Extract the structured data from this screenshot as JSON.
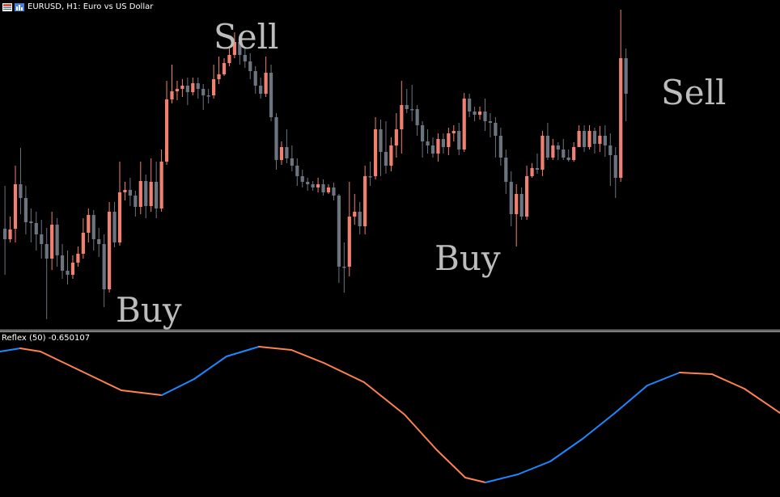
{
  "header": {
    "symbol_title": "EURUSD, H1:  Euro vs US Dollar"
  },
  "indicator": {
    "title": "Reflex (50) -0.650107",
    "rising_color": "#1e88ff",
    "falling_color": "#ff8050"
  },
  "signals": {
    "sell_1": "Sell",
    "sell_2": "Sell",
    "buy_1": "Buy",
    "buy_2": "Buy"
  },
  "colors": {
    "bull": "#f08070",
    "bear": "#6c7480",
    "background": "#000000"
  },
  "icons": [
    "bar-chart-icon",
    "window-icon"
  ],
  "chart_data": {
    "type": "candlestick",
    "candles": [
      [
        283,
        296,
        230,
        340
      ],
      [
        296,
        284,
        268,
        300
      ],
      [
        283,
        228,
        205,
        300
      ],
      [
        228,
        245,
        183,
        265
      ],
      [
        245,
        275,
        230,
        290
      ],
      [
        274,
        276,
        258,
        300
      ],
      [
        276,
        290,
        262,
        310
      ],
      [
        290,
        302,
        272,
        320
      ],
      [
        302,
        320,
        282,
        395
      ],
      [
        320,
        278,
        262,
        334
      ],
      [
        278,
        316,
        270,
        330
      ],
      [
        316,
        335,
        302,
        345
      ],
      [
        335,
        340,
        310,
        352
      ],
      [
        340,
        325,
        316,
        345
      ],
      [
        325,
        314,
        305,
        330
      ],
      [
        314,
        288,
        270,
        320
      ],
      [
        288,
        266,
        258,
        300
      ],
      [
        266,
        296,
        260,
        310
      ],
      [
        296,
        302,
        282,
        318
      ],
      [
        302,
        358,
        290,
        380
      ],
      [
        358,
        262,
        250,
        362
      ],
      [
        262,
        300,
        250,
        306
      ],
      [
        300,
        238,
        200,
        304
      ],
      [
        238,
        235,
        225,
        248
      ],
      [
        235,
        242,
        220,
        255
      ],
      [
        242,
        256,
        236,
        268
      ],
      [
        256,
        224,
        200,
        265
      ],
      [
        224,
        255,
        216,
        270
      ],
      [
        255,
        225,
        196,
        262
      ],
      [
        225,
        258,
        200,
        270
      ],
      [
        258,
        200,
        185,
        262
      ],
      [
        200,
        123,
        100,
        204
      ],
      [
        123,
        113,
        80,
        128
      ],
      [
        113,
        110,
        100,
        124
      ],
      [
        110,
        106,
        98,
        120
      ],
      [
        106,
        114,
        96,
        130
      ],
      [
        114,
        103,
        96,
        118
      ],
      [
        103,
        110,
        96,
        122
      ],
      [
        110,
        118,
        104,
        136
      ],
      [
        118,
        118,
        110,
        128
      ],
      [
        118,
        98,
        80,
        122
      ],
      [
        98,
        92,
        70,
        104
      ],
      [
        92,
        78,
        72,
        94
      ],
      [
        78,
        68,
        60,
        82
      ],
      [
        68,
        52,
        40,
        72
      ],
      [
        52,
        68,
        46,
        80
      ],
      [
        68,
        76,
        60,
        84
      ],
      [
        76,
        88,
        66,
        98
      ],
      [
        88,
        106,
        82,
        116
      ],
      [
        106,
        116,
        96,
        122
      ],
      [
        116,
        90,
        70,
        120
      ],
      [
        90,
        145,
        80,
        150
      ],
      [
        145,
        198,
        140,
        210
      ],
      [
        198,
        182,
        175,
        204
      ],
      [
        182,
        196,
        160,
        202
      ],
      [
        196,
        205,
        180,
        212
      ],
      [
        205,
        218,
        196,
        230
      ],
      [
        218,
        225,
        210,
        232
      ],
      [
        225,
        228,
        220,
        236
      ],
      [
        228,
        232,
        224,
        236
      ],
      [
        232,
        228,
        220,
        238
      ],
      [
        228,
        238,
        222,
        242
      ],
      [
        238,
        232,
        228,
        240
      ],
      [
        232,
        242,
        226,
        248
      ],
      [
        242,
        330,
        240,
        350
      ],
      [
        330,
        330,
        300,
        362
      ],
      [
        330,
        268,
        225,
        342
      ],
      [
        268,
        262,
        240,
        278
      ],
      [
        262,
        280,
        250,
        290
      ],
      [
        280,
        218,
        205,
        290
      ],
      [
        218,
        218,
        200,
        230
      ],
      [
        218,
        160,
        145,
        222
      ],
      [
        160,
        188,
        148,
        218
      ],
      [
        188,
        205,
        150,
        215
      ],
      [
        205,
        180,
        170,
        212
      ],
      [
        180,
        160,
        140,
        195
      ],
      [
        160,
        130,
        100,
        190
      ],
      [
        130,
        135,
        110,
        140
      ],
      [
        135,
        135,
        105,
        150
      ],
      [
        135,
        155,
        130,
        168
      ],
      [
        155,
        175,
        150,
        195
      ],
      [
        175,
        180,
        160,
        190
      ],
      [
        180,
        190,
        170,
        195
      ],
      [
        190,
        172,
        165,
        200
      ],
      [
        172,
        182,
        165,
        190
      ],
      [
        182,
        165,
        158,
        192
      ],
      [
        165,
        162,
        155,
        175
      ],
      [
        162,
        185,
        152,
        192
      ],
      [
        185,
        122,
        115,
        188
      ],
      [
        122,
        138,
        116,
        145
      ],
      [
        138,
        142,
        132,
        150
      ],
      [
        142,
        138,
        132,
        148
      ],
      [
        138,
        150,
        122,
        162
      ],
      [
        150,
        152,
        140,
        170
      ],
      [
        152,
        168,
        145,
        195
      ],
      [
        168,
        195,
        158,
        205
      ],
      [
        195,
        225,
        185,
        240
      ],
      [
        225,
        265,
        212,
        280
      ],
      [
        265,
        240,
        228,
        305
      ],
      [
        240,
        268,
        232,
        272
      ],
      [
        268,
        218,
        205,
        272
      ],
      [
        218,
        208,
        202,
        220
      ],
      [
        208,
        210,
        190,
        215
      ],
      [
        210,
        168,
        162,
        218
      ],
      [
        168,
        195,
        152,
        198
      ],
      [
        195,
        180,
        172,
        198
      ],
      [
        180,
        185,
        176,
        198
      ],
      [
        185,
        195,
        172,
        198
      ],
      [
        195,
        198,
        185,
        200
      ],
      [
        198,
        182,
        176,
        200
      ],
      [
        182,
        162,
        155,
        182
      ],
      [
        162,
        182,
        155,
        188
      ],
      [
        182,
        162,
        155,
        185
      ],
      [
        162,
        178,
        158,
        190
      ],
      [
        178,
        168,
        156,
        188
      ],
      [
        168,
        180,
        155,
        194
      ],
      [
        180,
        192,
        165,
        230
      ],
      [
        192,
        220,
        182,
        245
      ],
      [
        220,
        72,
        12,
        225
      ],
      [
        72,
        116,
        60,
        150
      ]
    ],
    "sell_positions": [
      [
        50
      ],
      [
        107
      ]
    ],
    "buy_positions": [
      [
        21
      ],
      [
        65
      ]
    ],
    "reflex": [
      [
        0,
        18,
        "up"
      ],
      [
        19,
        78,
        "down"
      ],
      [
        79,
        147,
        "up"
      ]
    ]
  }
}
